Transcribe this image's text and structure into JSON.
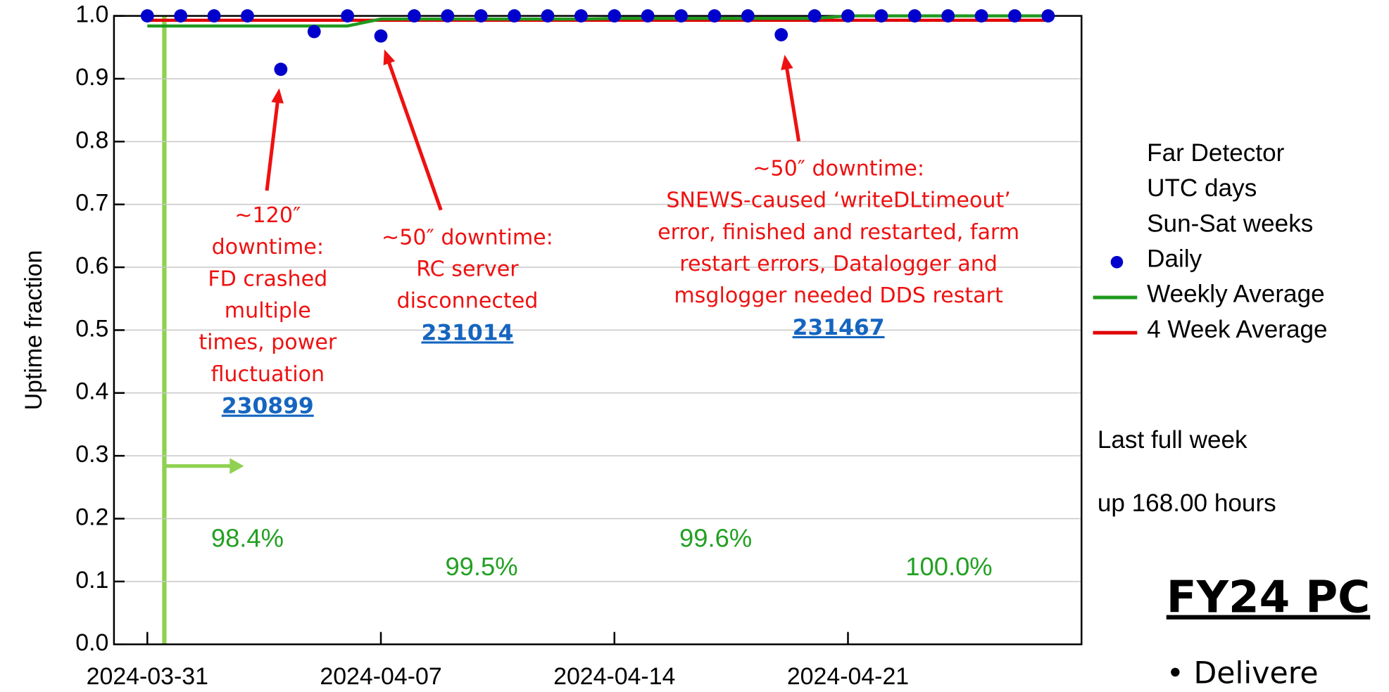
{
  "chart_data": {
    "type": "line",
    "ylabel": "Uptime fraction",
    "x": [
      "2024-03-31",
      "2024-04-01",
      "2024-04-02",
      "2024-04-03",
      "2024-04-04",
      "2024-04-05",
      "2024-04-06",
      "2024-04-07",
      "2024-04-08",
      "2024-04-09",
      "2024-04-10",
      "2024-04-11",
      "2024-04-12",
      "2024-04-13",
      "2024-04-14",
      "2024-04-15",
      "2024-04-16",
      "2024-04-17",
      "2024-04-18",
      "2024-04-19",
      "2024-04-20",
      "2024-04-21",
      "2024-04-22",
      "2024-04-23",
      "2024-04-24",
      "2024-04-25",
      "2024-04-26",
      "2024-04-27"
    ],
    "xlim": [
      "2024-03-30",
      "2024-04-28"
    ],
    "xticks": [
      "2024-03-31",
      "2024-04-07",
      "2024-04-14",
      "2024-04-21"
    ],
    "ylim": [
      0,
      1
    ],
    "yticks": [
      {
        "value": 0,
        "label": "0.0"
      },
      0.1,
      0.2,
      0.3,
      0.4,
      0.5,
      0.6,
      0.7,
      0.8,
      0.9,
      {
        "value": 1,
        "label": "1.0"
      }
    ],
    "grid": true,
    "series": [
      {
        "name": "Daily",
        "color": "#0000cc",
        "marker": "dot",
        "values": [
          1,
          1,
          1,
          1,
          0.915,
          0.975,
          1,
          0.968,
          1,
          1,
          1,
          1,
          1,
          1,
          1,
          1,
          1,
          1,
          1,
          0.97,
          1,
          1,
          1,
          1,
          1,
          1,
          1,
          1
        ]
      },
      {
        "name": "Weekly Average",
        "color": "#1f9a1f",
        "marker": "line",
        "values": [
          0.984,
          0.984,
          0.984,
          0.984,
          0.984,
          0.984,
          0.984,
          0.995,
          0.995,
          0.995,
          0.995,
          0.995,
          0.995,
          0.995,
          0.996,
          0.996,
          0.996,
          0.996,
          0.996,
          0.996,
          0.996,
          1,
          1,
          1,
          1,
          1,
          1,
          1
        ]
      },
      {
        "name": "4 Week Average",
        "color": "#e00000",
        "marker": "line",
        "values": [
          0.993,
          0.993,
          0.993,
          0.993,
          0.993,
          0.993,
          0.993,
          0.993,
          0.993,
          0.993,
          0.993,
          0.993,
          0.993,
          0.993,
          0.993,
          0.993,
          0.993,
          0.993,
          0.993,
          0.993,
          0.993,
          0.993,
          0.993,
          0.993,
          0.993,
          0.993,
          0.993,
          0.993
        ]
      }
    ],
    "legend_header": [
      "Far Detector",
      "UTC days",
      "Sun-Sat weeks"
    ],
    "week_labels": [
      "98.4%",
      "99.5%",
      "99.6%",
      "100.0%"
    ],
    "annotations": [
      {
        "lines": [
          "~120″",
          "downtime:",
          "FD crashed",
          "multiple",
          "times, power",
          "fluctuation"
        ],
        "link": "230899"
      },
      {
        "lines": [
          "~50″ downtime:",
          "RC server",
          "disconnected"
        ],
        "link": "231014"
      },
      {
        "lines": [
          "~50″ downtime:",
          "SNEWS-caused ‘writeDLtimeout’",
          "error, finished and restarted, farm",
          "restart errors, Datalogger and",
          "msglogger needed DDS restart"
        ],
        "link": "231467"
      }
    ],
    "side_notes": [
      "Last full week",
      "up 168.00 hours"
    ]
  },
  "slide": {
    "heading": "FY24 PC",
    "bullet": "• Delivere"
  }
}
